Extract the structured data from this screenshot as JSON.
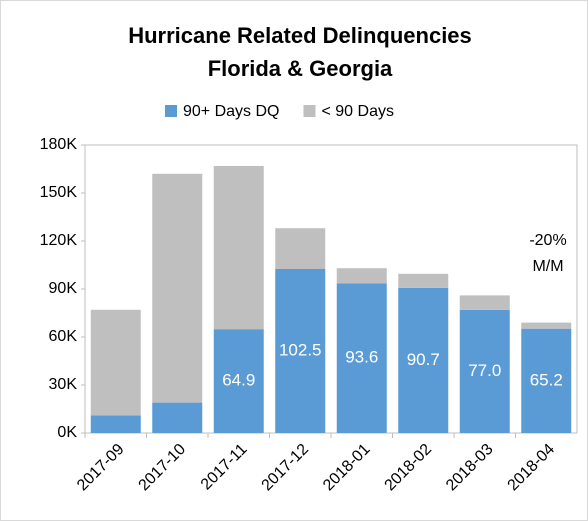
{
  "chart_data": {
    "type": "stacked_bar",
    "title": [
      "Hurricane Related Delinquencies",
      "Florida & Georgia"
    ],
    "categories": [
      "2017-09",
      "2017-10",
      "2017-11",
      "2017-12",
      "2018-01",
      "2018-02",
      "2018-03",
      "2018-04"
    ],
    "series": [
      {
        "name": "90+ Days DQ",
        "color": "#5b9bd5",
        "values": [
          11,
          19,
          64.9,
          102.5,
          93.6,
          90.7,
          77.0,
          65.2
        ],
        "value_labels": [
          null,
          null,
          "64.9",
          "102.5",
          "93.6",
          "90.7",
          "77.0",
          "65.2"
        ]
      },
      {
        "name": "< 90 Days",
        "color": "#bfbfbf",
        "values": [
          66,
          143,
          102,
          25.5,
          9.4,
          8.8,
          9,
          3.8
        ]
      }
    ],
    "ylim": [
      0,
      180
    ],
    "yticks": [
      {
        "value": 0,
        "label": "0K"
      },
      {
        "value": 30,
        "label": "30K"
      },
      {
        "value": 60,
        "label": "60K"
      },
      {
        "value": 90,
        "label": "90K"
      },
      {
        "value": 120,
        "label": "120K"
      },
      {
        "value": 150,
        "label": "150K"
      },
      {
        "value": 180,
        "label": "180K"
      }
    ],
    "annotation": [
      "-20%",
      "M/M"
    ],
    "legend": "top"
  }
}
